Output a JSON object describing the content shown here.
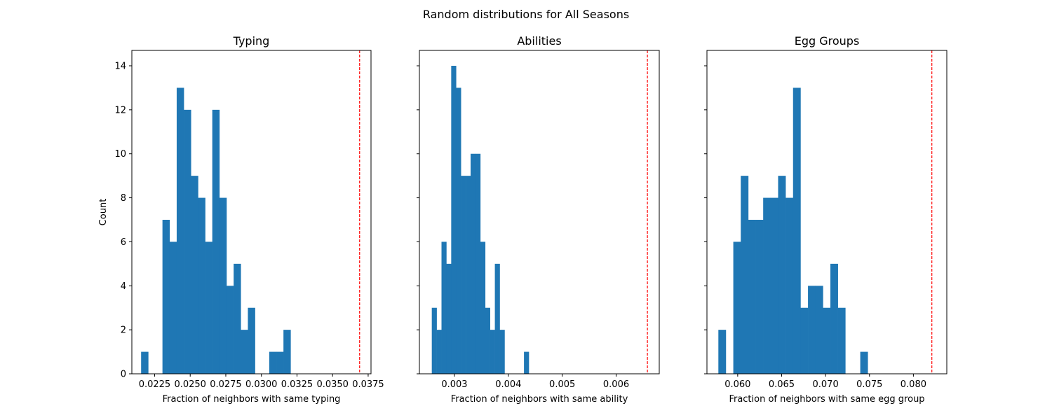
{
  "figure": {
    "suptitle": "Random distributions for All Seasons"
  },
  "colors": {
    "bar": "#1f77b4",
    "reference_line": "#ff0000",
    "axes": "#000000"
  },
  "chart_data": [
    {
      "type": "bar",
      "title": "Typing",
      "xlabel": "Fraction of neighbors with same typing",
      "ylabel": "Count",
      "xlim": [
        0.0209,
        0.0377
      ],
      "ylim": [
        0,
        14.7
      ],
      "xticks": [
        0.0225,
        0.025,
        0.0275,
        0.03,
        0.0325,
        0.035,
        0.0375
      ],
      "xtick_labels": [
        "0.0225",
        "0.0250",
        "0.0275",
        "0.0300",
        "0.0325",
        "0.0350",
        "0.0375"
      ],
      "yticks": [
        0,
        2,
        4,
        6,
        8,
        10,
        12,
        14
      ],
      "ytick_labels": [
        "0",
        "2",
        "4",
        "6",
        "8",
        "10",
        "12",
        "14"
      ],
      "bins": {
        "start": 0.02155,
        "width": 0.0005,
        "counts": [
          1,
          0,
          0,
          7,
          6,
          13,
          12,
          9,
          8,
          6,
          12,
          8,
          4,
          5,
          2,
          3,
          0,
          0,
          1,
          1,
          2
        ]
      },
      "reference_value": 0.0369
    },
    {
      "type": "bar",
      "title": "Abilities",
      "xlabel": "Fraction of neighbors with same ability",
      "ylabel": "",
      "xlim": [
        0.00235,
        0.0068
      ],
      "ylim": [
        0,
        14.7
      ],
      "xticks": [
        0.003,
        0.004,
        0.005,
        0.006
      ],
      "xtick_labels": [
        "0.003",
        "0.004",
        "0.005",
        "0.006"
      ],
      "yticks": [
        0,
        2,
        4,
        6,
        8,
        10,
        12,
        14
      ],
      "ytick_labels": [
        "",
        "",
        "",
        "",
        "",
        "",
        "",
        ""
      ],
      "bins": {
        "start": 0.00258,
        "width": 9e-05,
        "counts": [
          3,
          2,
          6,
          5,
          14,
          13,
          9,
          9,
          10,
          10,
          6,
          3,
          2,
          5,
          2,
          0,
          0,
          0,
          0,
          1
        ]
      },
      "reference_value": 0.00658
    },
    {
      "type": "bar",
      "title": "Egg Groups",
      "xlabel": "Fraction of neighbors with same egg group",
      "ylabel": "",
      "xlim": [
        0.0565,
        0.0838
      ],
      "ylim": [
        0,
        14.7
      ],
      "xticks": [
        0.06,
        0.065,
        0.07,
        0.075,
        0.08
      ],
      "xtick_labels": [
        "0.060",
        "0.065",
        "0.070",
        "0.075",
        "0.080"
      ],
      "yticks": [
        0,
        2,
        4,
        6,
        8,
        10,
        12,
        14
      ],
      "ytick_labels": [
        "",
        "",
        "",
        "",
        "",
        "",
        "",
        ""
      ],
      "bins": {
        "start": 0.0578,
        "width": 0.00085,
        "counts": [
          2,
          0,
          6,
          9,
          7,
          7,
          8,
          8,
          9,
          8,
          13,
          3,
          4,
          4,
          3,
          5,
          3,
          0,
          0,
          1
        ]
      },
      "reference_value": 0.0821
    }
  ]
}
